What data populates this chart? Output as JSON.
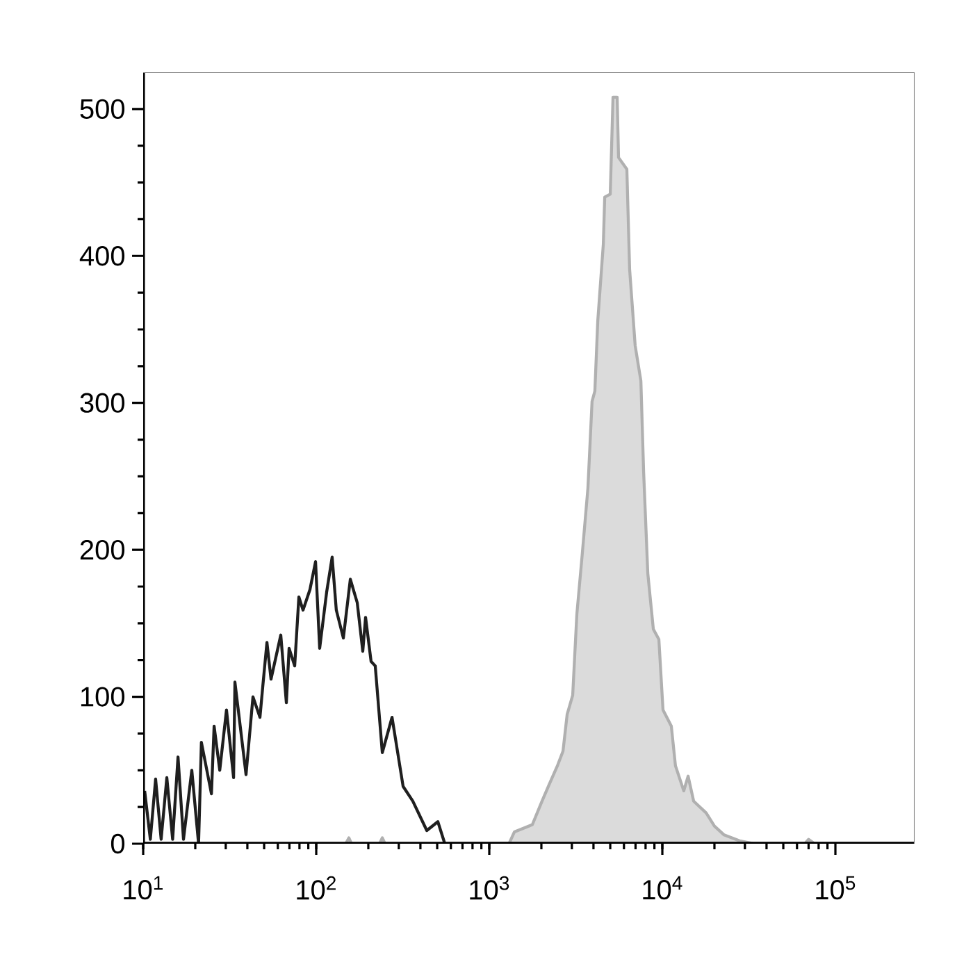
{
  "chart_data": {
    "type": "line",
    "log": "x",
    "xlim": [
      10,
      287000
    ],
    "ylim": [
      0,
      525
    ],
    "xticks": [
      {
        "value": 10,
        "label": "10$^{1}$"
      },
      {
        "value": 100,
        "label": "10$^{2}$"
      },
      {
        "value": 1000,
        "label": "10$^{3}$"
      },
      {
        "value": 10000,
        "label": "10$^{4}$"
      },
      {
        "value": 100000,
        "label": "10$^{5}$"
      }
    ],
    "yticks": [
      0,
      100,
      200,
      300,
      400,
      500
    ],
    "series": [
      {
        "type": "area",
        "color": "#b0b0b0",
        "x": [
          10,
          148,
          154.5,
          160,
          232,
          241,
          250,
          1300,
          1396,
          1774,
          2018,
          2213,
          2475,
          2667,
          2818,
          3034,
          3206,
          3451,
          3715,
          3926,
          4074,
          4236,
          4560,
          4645,
          5000,
          5188,
          5483,
          5585,
          5902,
          6237,
          6471,
          6966,
          7516,
          7798,
          8241,
          8872,
          9550,
          10090,
          11270,
          11910,
          13300,
          14090,
          15170,
          17910,
          20000,
          22750,
          27920,
          34200,
          66530,
          70000,
          75860,
          287000
        ],
        "values": [
          0,
          0,
          4,
          0,
          0,
          4,
          0,
          0,
          8,
          13,
          29,
          40,
          53,
          63,
          88,
          101,
          156,
          198,
          242,
          301,
          308,
          356,
          408,
          440,
          442,
          508,
          508,
          467,
          463,
          459,
          391,
          339,
          315,
          253,
          184,
          146,
          139,
          91,
          80,
          53,
          36,
          46,
          29,
          21,
          12,
          6,
          2,
          0,
          0,
          3,
          0,
          0
        ]
      },
      {
        "color": "#1f1f1f",
        "x": [
          10.2,
          11.0,
          11.8,
          12.7,
          13.7,
          14.8,
          15.9,
          17.1,
          19.1,
          20.9,
          21.7,
          24.8,
          25.7,
          27.7,
          30.3,
          33.3,
          33.9,
          39.3,
          43.1,
          47.3,
          49.1,
          51.9,
          54.8,
          62.4,
          67.2,
          69.7,
          75.1,
          79.4,
          83.9,
          92.0,
          99.1,
          104.7,
          114.8,
          123.6,
          130.6,
          143.5,
          157.4,
          172.6,
          185.8,
          192.8,
          207.5,
          219.3,
          240.9,
          274.2,
          317.7,
          361.4,
          435.5,
          504.7,
          553.5,
          287000
        ],
        "values": [
          36,
          3,
          44,
          3,
          45,
          3,
          59,
          3,
          50,
          0,
          69,
          34,
          80,
          50,
          91,
          45,
          110,
          47,
          100,
          86,
          107,
          137,
          112,
          142,
          96,
          133,
          121,
          168,
          159,
          173,
          192,
          133,
          171,
          195,
          159,
          140,
          180,
          164,
          131,
          154,
          124,
          121,
          62,
          86,
          39,
          29,
          9,
          15,
          0,
          0
        ]
      }
    ]
  }
}
